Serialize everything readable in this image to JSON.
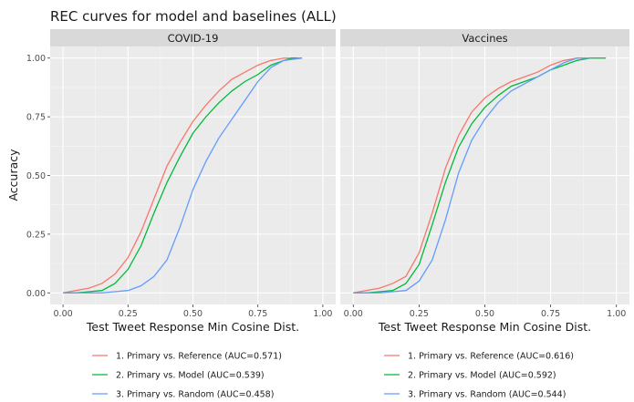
{
  "chart_data": {
    "type": "line",
    "title": "REC curves for model and baselines (ALL)",
    "xlabel": "Test Tweet Response Min Cosine Dist.",
    "ylabel": "Accuracy",
    "xlim": [
      0,
      1
    ],
    "ylim": [
      0,
      1
    ],
    "x_ticks": [
      "0.00",
      "0.25",
      "0.50",
      "0.75",
      "1.00"
    ],
    "y_ticks": [
      "0.00",
      "0.25",
      "0.50",
      "0.75",
      "1.00"
    ],
    "grid": true,
    "legend_position": "bottom",
    "panels": [
      {
        "title": "COVID-19",
        "series": [
          {
            "name": "1. Primary vs. Reference (AUC=0.571)",
            "color": "#F8766D",
            "x": [
              0.0,
              0.05,
              0.1,
              0.15,
              0.2,
              0.25,
              0.3,
              0.35,
              0.4,
              0.45,
              0.5,
              0.55,
              0.6,
              0.65,
              0.7,
              0.75,
              0.8,
              0.85,
              0.9
            ],
            "y": [
              0.0,
              0.01,
              0.02,
              0.04,
              0.08,
              0.15,
              0.26,
              0.4,
              0.54,
              0.64,
              0.73,
              0.8,
              0.86,
              0.91,
              0.94,
              0.97,
              0.99,
              1.0,
              1.0
            ]
          },
          {
            "name": "2. Primary vs. Model (AUC=0.539)",
            "color": "#00BA38",
            "x": [
              0.0,
              0.05,
              0.1,
              0.15,
              0.2,
              0.25,
              0.3,
              0.35,
              0.4,
              0.45,
              0.5,
              0.55,
              0.6,
              0.65,
              0.7,
              0.75,
              0.8,
              0.85,
              0.88,
              0.92
            ],
            "y": [
              0.0,
              0.0,
              0.005,
              0.01,
              0.04,
              0.1,
              0.2,
              0.34,
              0.47,
              0.58,
              0.68,
              0.75,
              0.81,
              0.86,
              0.9,
              0.93,
              0.97,
              0.99,
              1.0,
              1.0
            ]
          },
          {
            "name": "3. Primary vs. Random (AUC=0.458)",
            "color": "#619CFF",
            "x": [
              0.0,
              0.05,
              0.1,
              0.15,
              0.2,
              0.25,
              0.3,
              0.35,
              0.4,
              0.45,
              0.5,
              0.55,
              0.6,
              0.65,
              0.7,
              0.75,
              0.8,
              0.85,
              0.92
            ],
            "y": [
              0.0,
              0.0,
              0.0,
              0.0,
              0.005,
              0.01,
              0.03,
              0.07,
              0.14,
              0.28,
              0.44,
              0.56,
              0.66,
              0.74,
              0.82,
              0.9,
              0.96,
              0.99,
              1.0
            ]
          }
        ]
      },
      {
        "title": "Vaccines",
        "series": [
          {
            "name": "1. Primary vs. Reference (AUC=0.616)",
            "color": "#F8766D",
            "x": [
              0.0,
              0.05,
              0.1,
              0.15,
              0.2,
              0.25,
              0.3,
              0.35,
              0.4,
              0.45,
              0.5,
              0.55,
              0.6,
              0.65,
              0.7,
              0.75,
              0.8,
              0.85,
              0.9
            ],
            "y": [
              0.0,
              0.01,
              0.02,
              0.04,
              0.07,
              0.17,
              0.34,
              0.53,
              0.67,
              0.77,
              0.83,
              0.87,
              0.9,
              0.92,
              0.94,
              0.97,
              0.99,
              1.0,
              1.0
            ]
          },
          {
            "name": "2. Primary vs. Model (AUC=0.592)",
            "color": "#00BA38",
            "x": [
              0.0,
              0.05,
              0.1,
              0.15,
              0.2,
              0.25,
              0.3,
              0.35,
              0.4,
              0.45,
              0.5,
              0.55,
              0.6,
              0.65,
              0.7,
              0.75,
              0.8,
              0.85,
              0.9,
              0.96
            ],
            "y": [
              0.0,
              0.0,
              0.005,
              0.01,
              0.04,
              0.12,
              0.29,
              0.47,
              0.62,
              0.72,
              0.79,
              0.84,
              0.88,
              0.9,
              0.92,
              0.95,
              0.97,
              0.99,
              1.0,
              1.0
            ]
          },
          {
            "name": "3. Primary vs. Random (AUC=0.544)",
            "color": "#619CFF",
            "x": [
              0.0,
              0.05,
              0.1,
              0.15,
              0.2,
              0.25,
              0.3,
              0.35,
              0.4,
              0.45,
              0.5,
              0.55,
              0.6,
              0.65,
              0.7,
              0.75,
              0.8,
              0.85,
              0.9
            ],
            "y": [
              0.0,
              0.0,
              0.0,
              0.005,
              0.01,
              0.05,
              0.14,
              0.31,
              0.51,
              0.65,
              0.74,
              0.81,
              0.86,
              0.89,
              0.92,
              0.95,
              0.98,
              1.0,
              1.0
            ]
          }
        ]
      }
    ]
  }
}
